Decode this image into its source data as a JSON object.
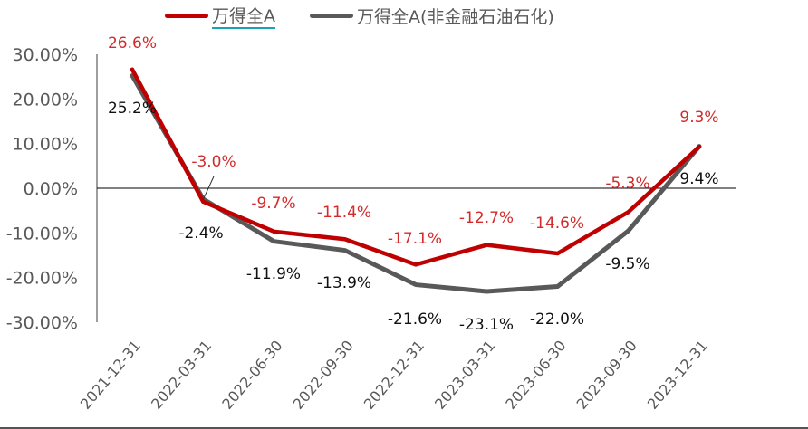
{
  "legend": {
    "items": [
      {
        "label": "万得全A",
        "color": "#c00000"
      },
      {
        "label": "万得全A(非金融石油石化)",
        "color": "#595959"
      }
    ]
  },
  "chart_data": {
    "type": "line",
    "title": "",
    "xlabel": "",
    "ylabel": "",
    "ylim": [
      -30,
      30
    ],
    "yticks": [
      "30.00%",
      "20.00%",
      "10.00%",
      "0.00%",
      "-10.00%",
      "-20.00%",
      "-30.00%"
    ],
    "categories": [
      "2021-12-31",
      "2022-03-31",
      "2022-06-30",
      "2022-09-30",
      "2022-12-31",
      "2023-03-31",
      "2023-06-30",
      "2023-09-30",
      "2023-12-31"
    ],
    "series": [
      {
        "name": "万得全A",
        "color": "#c00000",
        "values": [
          26.6,
          -3.0,
          -9.7,
          -11.4,
          -17.1,
          -12.7,
          -14.6,
          -5.3,
          9.3
        ],
        "labels": [
          "26.6%",
          "-3.0%",
          "-9.7%",
          "-11.4%",
          "-17.1%",
          "-12.7%",
          "-14.6%",
          "-5.3%",
          "9.3%"
        ]
      },
      {
        "name": "万得全A(非金融石油石化)",
        "color": "#595959",
        "values": [
          25.2,
          -2.4,
          -11.9,
          -13.9,
          -21.6,
          -23.1,
          -22.0,
          -9.5,
          9.4
        ],
        "labels": [
          "25.2%",
          "-2.4%",
          "-11.9%",
          "-13.9%",
          "-21.6%",
          "-23.1%",
          "-22.0%",
          "-9.5%",
          "9.4%"
        ]
      }
    ],
    "grid": false,
    "legend_position": "top"
  }
}
